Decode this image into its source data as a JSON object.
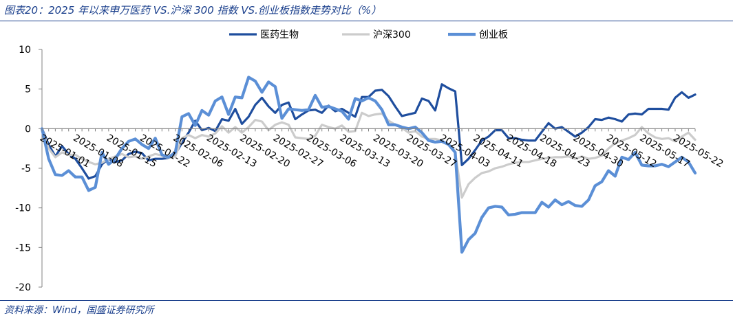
{
  "figure": {
    "title": "图表20：2025 年以来申万医药 VS.沪深 300 指数 VS.创业板指数走势对比（%）",
    "source": "资料来源：Wind，国盛证券研究所"
  },
  "colors": {
    "series_1": "#1f4e9e",
    "series_2": "#cccccc",
    "series_3": "#5b8fd6",
    "axis": "#808080",
    "rule": "#1a3f8c"
  },
  "chart_data": {
    "type": "line",
    "title": "",
    "xlabel": "",
    "ylabel": "",
    "ylim": [
      -20,
      10
    ],
    "yticks": [
      10,
      5,
      0,
      -5,
      -10,
      -15,
      -20
    ],
    "grid": false,
    "legend_position": "top-center",
    "x_tick_labels": [
      "2025-01-01",
      "2025-01-08",
      "2025-01-15",
      "2025-01-22",
      "2025-02-06",
      "2025-02-13",
      "2025-02-20",
      "2025-02-27",
      "2025-03-06",
      "2025-03-13",
      "2025-03-20",
      "2025-03-27",
      "2025-04-03",
      "2025-04-11",
      "2025-04-18",
      "2025-04-23",
      "2025-04-30",
      "2025-05-12",
      "2025-05-17",
      "2025-05-22"
    ],
    "x_tick_index": [
      0,
      5,
      10,
      15,
      20,
      25,
      30,
      35,
      40,
      45,
      50,
      55,
      60,
      65,
      70,
      75,
      80,
      85,
      90,
      95
    ],
    "series": [
      {
        "name": "医药生物",
        "values": [
          0,
          -2,
          -3.5,
          -2.2,
          -3.2,
          -3.8,
          -5,
          -6.3,
          -6,
          -4.5,
          -3.8,
          -4.2,
          -4,
          -3.2,
          -2.9,
          -3.1,
          -4,
          -3.8,
          -3.8,
          -3.7,
          -3.2,
          -1.8,
          -0.5,
          1.0,
          -0.2,
          0.1,
          -0.3,
          1.2,
          1.0,
          2.5,
          0.6,
          1.5,
          3.0,
          3.9,
          2.8,
          2.0,
          3.0,
          3.3,
          1.2,
          1.8,
          2.3,
          2.4,
          2.0,
          2.9,
          2.2,
          2.5,
          2.0,
          1.5,
          4.0,
          4.0,
          4.8,
          4.9,
          4.1,
          2.8,
          1.6,
          1.8,
          2.0,
          3.8,
          3.5,
          2.3,
          5.6,
          5.1,
          4.7,
          -4.6,
          -3.8,
          -2.7,
          -1.5,
          -1.0,
          -0.2,
          -0.2,
          -1.2,
          -1.2,
          -1.4,
          -1.5,
          -1.5,
          -0.4,
          0.7,
          0,
          0.2,
          -0.4,
          -1.0,
          -0.5,
          0.2,
          1.2,
          1.1,
          1.4,
          1.2,
          0.9,
          1.8,
          1.9,
          1.8,
          2.5,
          2.5,
          2.5,
          2.4,
          3.9,
          4.6,
          3.9,
          4.3
        ],
        "line_width": 3.2
      },
      {
        "name": "沪深300",
        "values": [
          0,
          -2.5,
          -3.6,
          -3.0,
          -3.3,
          -3.3,
          -3.8,
          -4.2,
          -4.5,
          -4.3,
          -3.8,
          -3.5,
          -3.2,
          -3.6,
          -3.5,
          -3.8,
          -3.5,
          -3.2,
          -3.4,
          -3.7,
          -3.5,
          -1.2,
          -0.8,
          -1.2,
          -0.8,
          -1.0,
          -0.6,
          0.3,
          -0.5,
          0.2,
          -0.5,
          0.2,
          1.1,
          0.9,
          -0.2,
          0.5,
          0.8,
          0.5,
          -1.1,
          -1.2,
          -1.3,
          -0.9,
          0.5,
          0.2,
          0,
          0.4,
          -0.4,
          -0.3,
          2.0,
          1.6,
          1.8,
          1.9,
          1.0,
          0.5,
          0.1,
          -0.5,
          -0.3,
          -1.0,
          -1.3,
          -1.3,
          -1.5,
          -2.0,
          -3.0,
          -8.7,
          -7.0,
          -6.2,
          -5.6,
          -5.4,
          -5.0,
          -4.8,
          -4.5,
          -4.3,
          -4.2,
          -4.2,
          -4.0,
          -3.8,
          -3.7,
          -3.6,
          -3.6,
          -3.5,
          -3.8,
          -3.5,
          -3.8,
          -3.7,
          -3.4,
          -2.5,
          -1.8,
          -1.5,
          -1.2,
          -0.8,
          0.2,
          -0.6,
          -1.1,
          -1.3,
          -1.2,
          -1.6,
          -1.0,
          -0.5,
          -1.4
        ],
        "line_width": 3.2
      },
      {
        "name": "创业板",
        "values": [
          0,
          -3.8,
          -5.8,
          -5.9,
          -5.3,
          -6.1,
          -6.1,
          -7.8,
          -7.4,
          -3.0,
          -4.5,
          -3.8,
          -2.5,
          -1.6,
          -1.3,
          -2.0,
          -2.5,
          -1.2,
          -3.3,
          -3.6,
          -3.0,
          1.5,
          1.9,
          0.4,
          2.3,
          1.7,
          3.5,
          4.0,
          1.8,
          4.0,
          3.9,
          6.5,
          6.0,
          4.6,
          5.9,
          5.3,
          1.3,
          2.5,
          2.4,
          2.3,
          2.4,
          4.2,
          2.7,
          2.8,
          2.5,
          2.2,
          1.2,
          3.8,
          3.5,
          3.9,
          3.5,
          2.4,
          0.5,
          0.5,
          0.2,
          0,
          0.2,
          -0.5,
          -1.5,
          -1.7,
          -1.6,
          -2.0,
          -3.0,
          -15.6,
          -14.0,
          -13.2,
          -11.2,
          -10.0,
          -9.8,
          -9.9,
          -10.9,
          -10.8,
          -10.6,
          -10.6,
          -10.6,
          -9.3,
          -9.9,
          -9.0,
          -9.6,
          -9.2,
          -9.7,
          -9.8,
          -9.0,
          -7.2,
          -6.7,
          -5.3,
          -6.0,
          -3.6,
          -3.9,
          -3.0,
          -4.6,
          -4.7,
          -4.7,
          -4.5,
          -4.8,
          -4.2,
          -3.6,
          -4.2,
          -5.6
        ],
        "line_width": 4.2
      }
    ]
  }
}
